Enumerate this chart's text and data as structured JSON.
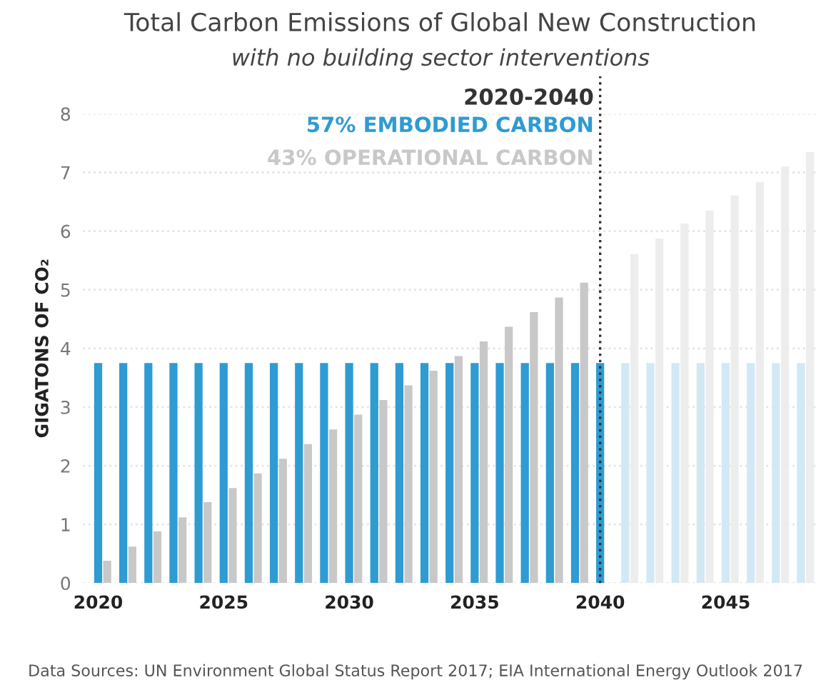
{
  "chart_data": {
    "type": "bar",
    "title": "Total Carbon Emissions of Global New Construction",
    "subtitle": "with no building sector interventions",
    "ylabel": "GIGATONS OF CO₂",
    "x": [
      2020,
      2021,
      2022,
      2023,
      2024,
      2025,
      2026,
      2027,
      2028,
      2029,
      2030,
      2031,
      2032,
      2033,
      2034,
      2035,
      2036,
      2037,
      2038,
      2039,
      2040,
      2041,
      2042,
      2043,
      2044,
      2045,
      2046,
      2047,
      2048
    ],
    "xlim": [
      2019.4,
      2048.7
    ],
    "xticks": [
      2020,
      2025,
      2030,
      2035,
      2040,
      2045
    ],
    "ylim": [
      0,
      8
    ],
    "yticks": [
      0,
      1,
      2,
      3,
      4,
      5,
      6,
      7,
      8
    ],
    "grid": "y",
    "series": [
      {
        "name": "57% EMBODIED CARBON",
        "color": "#2f9bd3",
        "colors": [
          "#2f9bd3",
          "#2f9bd3",
          "#2f9bd3",
          "#2f9bd3",
          "#2f9bd3",
          "#2f9bd3",
          "#2f9bd3",
          "#2f9bd3",
          "#2f9bd3",
          "#2f9bd3",
          "#2f9bd3",
          "#2f9bd3",
          "#2f9bd3",
          "#2f9bd3",
          "#2f9bd3",
          "#2f9bd3",
          "#2f9bd3",
          "#2f9bd3",
          "#2f9bd3",
          "#2f9bd3",
          "#2f9bd3",
          "#d2e8f5",
          "#d2e8f5",
          "#d2e8f5",
          "#d2e8f5",
          "#d2e8f5",
          "#d2e8f5",
          "#d2e8f5",
          "#d2e8f5"
        ],
        "values": [
          3.75,
          3.75,
          3.75,
          3.75,
          3.75,
          3.75,
          3.75,
          3.75,
          3.75,
          3.75,
          3.75,
          3.75,
          3.75,
          3.75,
          3.75,
          3.75,
          3.75,
          3.75,
          3.75,
          3.75,
          3.75,
          3.75,
          3.75,
          3.75,
          3.75,
          3.75,
          3.75,
          3.75,
          3.75
        ]
      },
      {
        "name": "43% OPERATIONAL CARBON",
        "color": "#c8c8c8",
        "colors": [
          "#c8c8c8",
          "#c8c8c8",
          "#c8c8c8",
          "#c8c8c8",
          "#c8c8c8",
          "#c8c8c8",
          "#c8c8c8",
          "#c8c8c8",
          "#c8c8c8",
          "#c8c8c8",
          "#c8c8c8",
          "#c8c8c8",
          "#c8c8c8",
          "#c8c8c8",
          "#c8c8c8",
          "#c8c8c8",
          "#c8c8c8",
          "#c8c8c8",
          "#c8c8c8",
          "#c8c8c8",
          "#c8c8c8",
          "#ededed",
          "#ededed",
          "#ededed",
          "#ededed",
          "#ededed",
          "#ededed",
          "#ededed",
          "#ededed"
        ],
        "values": [
          0.38,
          0.62,
          0.88,
          1.12,
          1.38,
          1.62,
          1.87,
          2.12,
          2.37,
          2.62,
          2.87,
          3.12,
          3.37,
          3.62,
          3.87,
          4.12,
          4.37,
          4.62,
          4.87,
          5.12,
          null,
          5.61,
          5.87,
          6.13,
          6.35,
          6.61,
          6.84,
          7.1,
          7.35
        ]
      }
    ],
    "ref_lines": [
      {
        "axis": "x",
        "value": 2040,
        "color": "#333333",
        "line_style": "dotted"
      }
    ],
    "annotations": [
      "2020-2040",
      "Data Sources: UN Environment Global Status Report 2017; EIA International Energy Outlook 2017"
    ]
  }
}
